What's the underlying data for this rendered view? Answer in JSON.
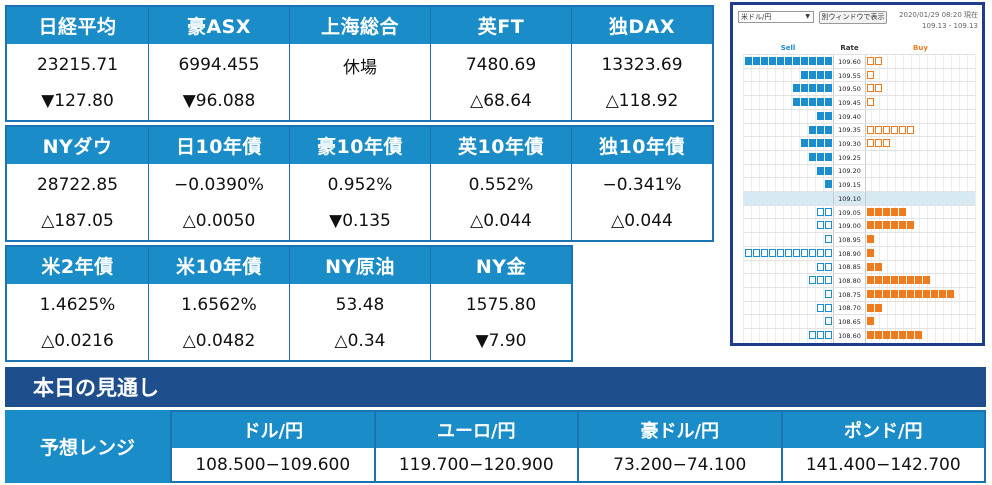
{
  "markets": [
    [
      {
        "name": "日経平均",
        "value": "23215.71",
        "change": "▼127.80"
      },
      {
        "name": "豪ASX",
        "value": "6994.455",
        "change": "▼96.088"
      },
      {
        "name": "上海総合",
        "value": "休場",
        "change": ""
      },
      {
        "name": "英FT",
        "value": "7480.69",
        "change": "△68.64"
      },
      {
        "name": "独DAX",
        "value": "13323.69",
        "change": "△118.92"
      }
    ],
    [
      {
        "name": "NYダウ",
        "value": "28722.85",
        "change": "△187.05"
      },
      {
        "name": "日10年債",
        "value": "−0.0390%",
        "change": "△0.0050"
      },
      {
        "name": "豪10年債",
        "value": "0.952%",
        "change": "▼0.135"
      },
      {
        "name": "英10年債",
        "value": "0.552%",
        "change": "△0.044"
      },
      {
        "name": "独10年債",
        "value": "−0.341%",
        "change": "△0.044"
      }
    ],
    [
      {
        "name": "米2年債",
        "value": "1.4625%",
        "change": "△0.0216"
      },
      {
        "name": "米10年債",
        "value": "1.6562%",
        "change": "△0.0482"
      },
      {
        "name": "NY原油",
        "value": "53.48",
        "change": "△0.34"
      },
      {
        "name": "NY金",
        "value": "1575.80",
        "change": "▼7.90"
      }
    ]
  ],
  "widget": {
    "pair_select": "米ドル/円",
    "new_window_button": "別ウィンドウで表示",
    "timestamp": "2020/01/29 08:20 現在",
    "range": "109.13 - 109.13",
    "sell_header": "Sell",
    "rate_header": "Rate",
    "buy_header": "Buy",
    "colors": {
      "sell": "#1b8fce",
      "buy": "#f07b1d",
      "current_row": "#d7e9f3"
    },
    "rows": [
      {
        "rate": "109.60",
        "sell_filled": 11,
        "sell_empty": 0,
        "buy_filled": 0,
        "buy_empty": 2
      },
      {
        "rate": "109.55",
        "sell_filled": 4,
        "sell_empty": 0,
        "buy_filled": 0,
        "buy_empty": 1
      },
      {
        "rate": "109.50",
        "sell_filled": 5,
        "sell_empty": 0,
        "buy_filled": 0,
        "buy_empty": 2
      },
      {
        "rate": "109.45",
        "sell_filled": 5,
        "sell_empty": 0,
        "buy_filled": 0,
        "buy_empty": 1
      },
      {
        "rate": "109.40",
        "sell_filled": 2,
        "sell_empty": 0,
        "buy_filled": 0,
        "buy_empty": 0
      },
      {
        "rate": "109.35",
        "sell_filled": 3,
        "sell_empty": 0,
        "buy_filled": 0,
        "buy_empty": 6
      },
      {
        "rate": "109.30",
        "sell_filled": 4,
        "sell_empty": 0,
        "buy_filled": 0,
        "buy_empty": 3
      },
      {
        "rate": "109.25",
        "sell_filled": 3,
        "sell_empty": 0,
        "buy_filled": 0,
        "buy_empty": 0
      },
      {
        "rate": "109.20",
        "sell_filled": 2,
        "sell_empty": 0,
        "buy_filled": 0,
        "buy_empty": 0
      },
      {
        "rate": "109.15",
        "sell_filled": 1,
        "sell_empty": 0,
        "buy_filled": 0,
        "buy_empty": 0
      },
      {
        "rate": "109.10",
        "sell_filled": 0,
        "sell_empty": 0,
        "buy_filled": 0,
        "buy_empty": 0,
        "current": true
      },
      {
        "rate": "109.05",
        "sell_filled": 0,
        "sell_empty": 2,
        "buy_filled": 5,
        "buy_empty": 0
      },
      {
        "rate": "109.00",
        "sell_filled": 0,
        "sell_empty": 2,
        "buy_filled": 6,
        "buy_empty": 0
      },
      {
        "rate": "108.95",
        "sell_filled": 0,
        "sell_empty": 1,
        "buy_filled": 1,
        "buy_empty": 0
      },
      {
        "rate": "108.90",
        "sell_filled": 0,
        "sell_empty": 11,
        "buy_filled": 1,
        "buy_empty": 0
      },
      {
        "rate": "108.85",
        "sell_filled": 0,
        "sell_empty": 2,
        "buy_filled": 2,
        "buy_empty": 0
      },
      {
        "rate": "108.80",
        "sell_filled": 0,
        "sell_empty": 3,
        "buy_filled": 8,
        "buy_empty": 0
      },
      {
        "rate": "108.75",
        "sell_filled": 0,
        "sell_empty": 1,
        "buy_filled": 11,
        "buy_empty": 0
      },
      {
        "rate": "108.70",
        "sell_filled": 0,
        "sell_empty": 2,
        "buy_filled": 2,
        "buy_empty": 0
      },
      {
        "rate": "108.65",
        "sell_filled": 0,
        "sell_empty": 1,
        "buy_filled": 1,
        "buy_empty": 0
      },
      {
        "rate": "108.60",
        "sell_filled": 0,
        "sell_empty": 3,
        "buy_filled": 7,
        "buy_empty": 0
      }
    ]
  },
  "outlook": {
    "title": "本日の見通し",
    "range_label": "予想レンジ",
    "pairs": [
      {
        "pair": "ドル/円",
        "range": "108.500−109.600"
      },
      {
        "pair": "ユーロ/円",
        "range": "119.700−120.900"
      },
      {
        "pair": "豪ドル/円",
        "range": "73.200−74.100"
      },
      {
        "pair": "ポンド/円",
        "range": "141.400−142.700"
      }
    ]
  }
}
